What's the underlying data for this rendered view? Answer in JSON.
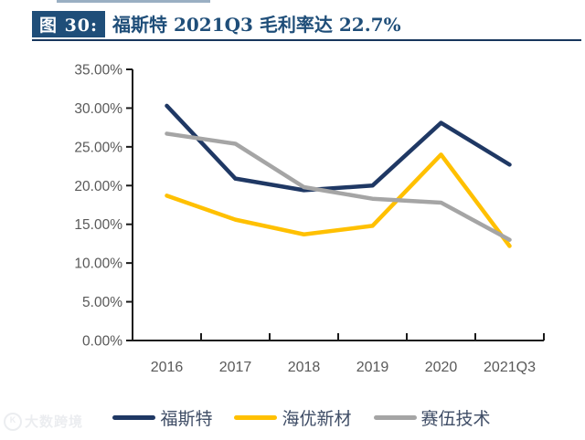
{
  "header": {
    "figure_label": "图 30:",
    "title": "福斯特 2021Q3 毛利率达 22.7%"
  },
  "watermark": {
    "logo": "circle-logo",
    "text": "大数跨境"
  },
  "colors": {
    "header_box": "#1F4E79",
    "title_text": "#1F4E79",
    "title_rule": "#17365D",
    "axis": "#1a1a1a",
    "tick_label": "#595959"
  },
  "chart_data": {
    "type": "line",
    "title": "福斯特 2021Q3 毛利率达 22.7%",
    "categories": [
      "2016",
      "2017",
      "2018",
      "2019",
      "2020",
      "2021Q3"
    ],
    "series": [
      {
        "name": "福斯特",
        "color": "#1F3864",
        "values": [
          30.3,
          20.9,
          19.4,
          20.0,
          28.1,
          22.7
        ]
      },
      {
        "name": "海优新材",
        "color": "#FFC000",
        "values": [
          18.7,
          15.6,
          13.7,
          14.8,
          24.0,
          12.2
        ]
      },
      {
        "name": "赛伍技术",
        "color": "#A5A5A5",
        "values": [
          26.7,
          25.4,
          19.8,
          18.3,
          17.8,
          13.0
        ]
      }
    ],
    "y_axis": {
      "ticks": [
        {
          "value": 35,
          "label": "35.00%"
        },
        {
          "value": 30,
          "label": "30.00%"
        },
        {
          "value": 25,
          "label": "25.00%"
        },
        {
          "value": 20,
          "label": "20.00%"
        },
        {
          "value": 15,
          "label": "15.00%"
        },
        {
          "value": 10,
          "label": "10.00%"
        },
        {
          "value": 5,
          "label": "5.00%"
        },
        {
          "value": 0,
          "label": "0.00%"
        }
      ]
    },
    "ylim": [
      0,
      35
    ],
    "xlabel": "",
    "ylabel": "",
    "grid": false,
    "legend_position": "bottom"
  }
}
